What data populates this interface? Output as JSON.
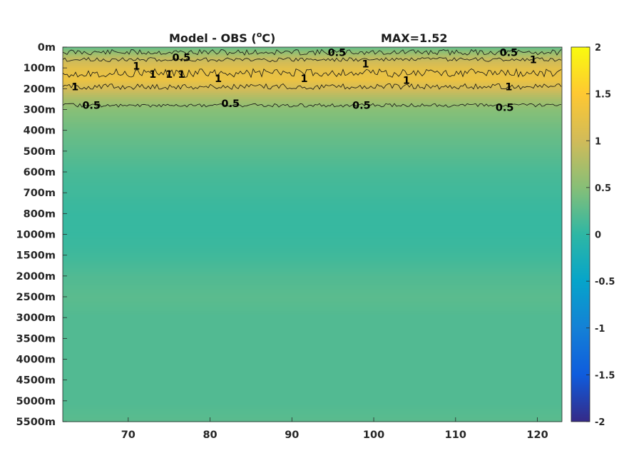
{
  "chart_data": {
    "type": "heatmap",
    "title": "Model - OBS (",
    "title_sup": "o",
    "title_unit": "C)",
    "max_label": "MAX=1.52",
    "max_value": 1.52,
    "x": {
      "range": [
        62,
        123
      ],
      "ticks": [
        70,
        80,
        90,
        100,
        110,
        120
      ]
    },
    "y": {
      "ticks": [
        "0m",
        "100m",
        "200m",
        "300m",
        "400m",
        "500m",
        "600m",
        "700m",
        "800m",
        "1000m",
        "1500m",
        "2000m",
        "2500m",
        "3000m",
        "3500m",
        "4000m",
        "4500m",
        "5000m",
        "5500m"
      ]
    },
    "colorbar": {
      "range": [
        -2,
        2
      ],
      "ticks": [
        "2",
        "1.5",
        "1",
        "0.5",
        "0",
        "-0.5",
        "-1",
        "-1.5",
        "-2"
      ],
      "colormap": "parula"
    },
    "depth_profile": [
      {
        "depth": "0m",
        "value": 0.35
      },
      {
        "depth": "50m",
        "value": 0.9
      },
      {
        "depth": "100m",
        "value": 1.2
      },
      {
        "depth": "150m",
        "value": 1.3
      },
      {
        "depth": "200m",
        "value": 1.0
      },
      {
        "depth": "250m",
        "value": 0.7
      },
      {
        "depth": "300m",
        "value": 0.5
      },
      {
        "depth": "400m",
        "value": 0.35
      },
      {
        "depth": "500m",
        "value": 0.25
      },
      {
        "depth": "600m",
        "value": 0.15
      },
      {
        "depth": "700m",
        "value": 0.1
      },
      {
        "depth": "800m",
        "value": 0.05
      },
      {
        "depth": "1000m",
        "value": 0.05
      },
      {
        "depth": "1500m",
        "value": 0.1
      },
      {
        "depth": "2000m",
        "value": 0.2
      },
      {
        "depth": "2500m",
        "value": 0.25
      },
      {
        "depth": "3000m",
        "value": 0.2
      },
      {
        "depth": "3500m",
        "value": 0.2
      },
      {
        "depth": "4000m",
        "value": 0.2
      },
      {
        "depth": "4500m",
        "value": 0.2
      },
      {
        "depth": "5000m",
        "value": 0.2
      },
      {
        "depth": "5500m",
        "value": 0.25
      }
    ],
    "contour_labels": [
      {
        "text": "0.5",
        "x": 76.5,
        "depth": "50m"
      },
      {
        "text": "0.5",
        "x": 95.5,
        "depth": "25m"
      },
      {
        "text": "0.5",
        "x": 116.5,
        "depth": "25m"
      },
      {
        "text": "1",
        "x": 71,
        "depth": "90m"
      },
      {
        "text": "1",
        "x": 73,
        "depth": "130m"
      },
      {
        "text": "1",
        "x": 75,
        "depth": "130m"
      },
      {
        "text": "1",
        "x": 76.5,
        "depth": "130m"
      },
      {
        "text": "1",
        "x": 63.5,
        "depth": "190m"
      },
      {
        "text": "1",
        "x": 81,
        "depth": "150m"
      },
      {
        "text": "1",
        "x": 91.5,
        "depth": "150m"
      },
      {
        "text": "1",
        "x": 99,
        "depth": "80m"
      },
      {
        "text": "1",
        "x": 104,
        "depth": "160m"
      },
      {
        "text": "1",
        "x": 116.5,
        "depth": "190m"
      },
      {
        "text": "1",
        "x": 119.5,
        "depth": "60m"
      },
      {
        "text": "0.5",
        "x": 65.5,
        "depth": "280m"
      },
      {
        "text": "0.5",
        "x": 82.5,
        "depth": "270m"
      },
      {
        "text": "0.5",
        "x": 98.5,
        "depth": "280m"
      },
      {
        "text": "0.5",
        "x": 116,
        "depth": "290m"
      }
    ]
  }
}
